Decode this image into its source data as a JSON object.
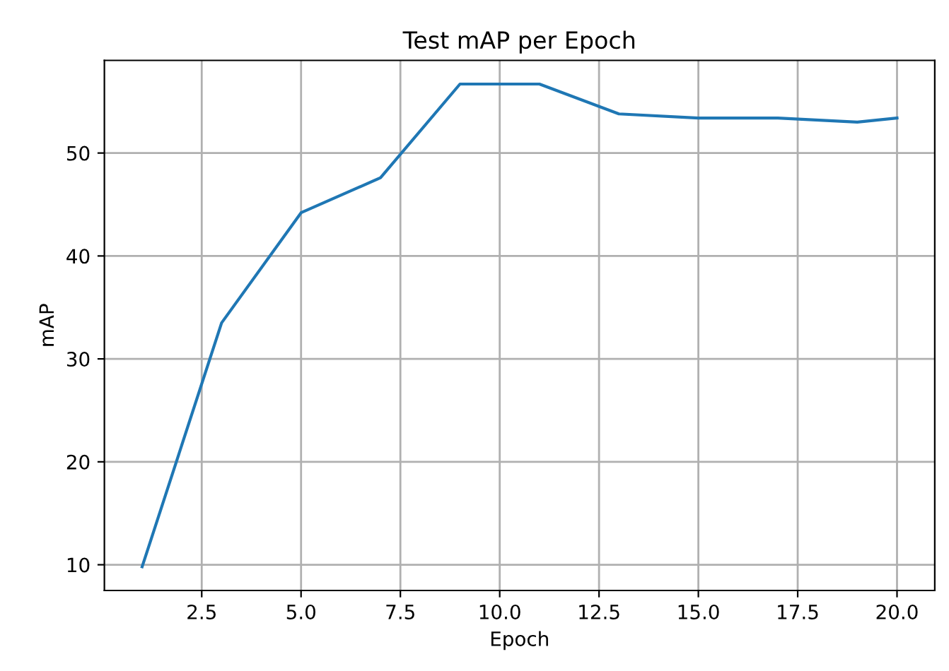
{
  "chart_data": {
    "type": "line",
    "title": "Test mAP per Epoch",
    "xlabel": "Epoch",
    "ylabel": "mAP",
    "x": [
      1,
      3,
      5,
      7,
      9,
      11,
      13,
      15,
      17,
      19,
      20
    ],
    "series": [
      {
        "color": "#1f77b4",
        "values": [
          9.8,
          33.5,
          44.2,
          47.6,
          56.7,
          56.7,
          53.8,
          53.4,
          53.4,
          53.0,
          53.4
        ]
      }
    ],
    "xlim": [
      0.05,
      20.95
    ],
    "xticks": [
      2.5,
      {
        "value": 5,
        "label": "5.0"
      },
      7.5,
      {
        "value": 10,
        "label": "10.0"
      },
      12.5,
      {
        "value": 15,
        "label": "15.0"
      },
      17.5,
      {
        "value": 20,
        "label": "20.0"
      }
    ],
    "ylim": [
      7.5,
      59
    ],
    "yticks": [
      10,
      20,
      30,
      40,
      50
    ],
    "grid": true,
    "line_style": "solid",
    "marker": "none"
  }
}
